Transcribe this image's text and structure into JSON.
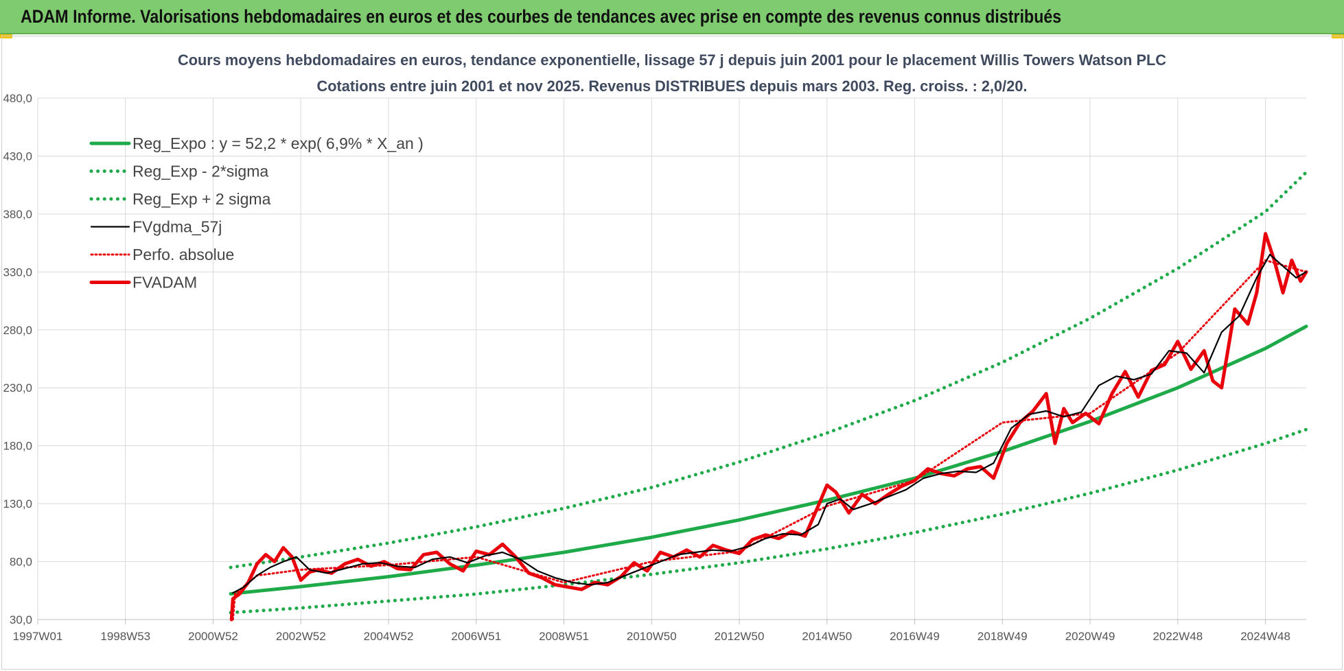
{
  "banner": {
    "title": "ADAM Informe. Valorisations hebdomadaires en euros et des courbes de tendances avec prise en compte des revenus connus distribués"
  },
  "colors": {
    "banner_bg": "#7fcb6f",
    "reg_green": "#1faa4a",
    "fv_red": "#e8000b",
    "black": "#000000"
  },
  "chart_data": {
    "type": "line",
    "title_lines": [
      "Cours moyens hebdomadaires en euros, tendance exponentielle, lissage 57 j depuis juin 2001 pour le placement Willis Towers Watson PLC",
      "Cotations entre juin 2001 et nov 2025.  Revenus DISTRIBUES depuis mars 2003. Reg. croiss. : 2,0/20."
    ],
    "xlabel": "",
    "ylabel": "",
    "x_range": [
      1997.0,
      2025.93
    ],
    "ylim": [
      30,
      480
    ],
    "y_ticks": [
      30,
      80,
      130,
      180,
      230,
      280,
      330,
      380,
      430,
      480
    ],
    "y_tick_labels": [
      "30,0",
      "80,0",
      "130,0",
      "180,0",
      "230,0",
      "280,0",
      "330,0",
      "380,0",
      "430,0",
      "480,0"
    ],
    "x_ticks": [
      {
        "label": "1997W01",
        "x": 1997.0
      },
      {
        "label": "1998W53",
        "x": 1999.0
      },
      {
        "label": "2000W52",
        "x": 2001.0
      },
      {
        "label": "2002W52",
        "x": 2003.0
      },
      {
        "label": "2004W52",
        "x": 2005.0
      },
      {
        "label": "2006W51",
        "x": 2007.0
      },
      {
        "label": "2008W51",
        "x": 2009.0
      },
      {
        "label": "2010W50",
        "x": 2011.0
      },
      {
        "label": "2012W50",
        "x": 2013.0
      },
      {
        "label": "2014W50",
        "x": 2015.0
      },
      {
        "label": "2016W49",
        "x": 2017.0
      },
      {
        "label": "2018W49",
        "x": 2019.0
      },
      {
        "label": "2020W49",
        "x": 2021.0
      },
      {
        "label": "2022W48",
        "x": 2023.0
      },
      {
        "label": "2024W48",
        "x": 2025.0
      }
    ],
    "legend_position": "top-left",
    "grid": true,
    "series": [
      {
        "name": "Reg_Expo : y = 52,2 * exp( 6,9% *  X_an )",
        "style": "solid-thick",
        "color": "#1faa4a",
        "x": [
          2001.4,
          2003,
          2005,
          2007,
          2009,
          2011,
          2013,
          2015,
          2017,
          2019,
          2021,
          2023,
          2025,
          2025.93
        ],
        "y": [
          52.2,
          58.4,
          67,
          77,
          88,
          101,
          116,
          133,
          152,
          175,
          201,
          230,
          264,
          283
        ]
      },
      {
        "name": "Reg_Exp - 2*sigma",
        "style": "dotted",
        "color": "#1faa4a",
        "x": [
          2001.4,
          2003,
          2005,
          2007,
          2009,
          2011,
          2013,
          2015,
          2017,
          2019,
          2021,
          2023,
          2025,
          2025.93
        ],
        "y": [
          36,
          40,
          46,
          52,
          60,
          69,
          79,
          91,
          105,
          121,
          139,
          159,
          182,
          194
        ]
      },
      {
        "name": "Reg_Exp + 2 sigma",
        "style": "dotted",
        "color": "#1faa4a",
        "x": [
          2001.4,
          2003,
          2005,
          2007,
          2009,
          2011,
          2013,
          2015,
          2017,
          2019,
          2021,
          2023,
          2025,
          2025.93
        ],
        "y": [
          75,
          84,
          96,
          110,
          126,
          144,
          166,
          191,
          219,
          252,
          290,
          333,
          382,
          416
        ]
      },
      {
        "name": "FVgdma_57j",
        "style": "solid",
        "color": "#000000",
        "x": [
          2001.45,
          2001.7,
          2002.0,
          2002.3,
          2002.6,
          2002.9,
          2003.2,
          2003.6,
          2004.0,
          2004.4,
          2004.8,
          2005.2,
          2005.6,
          2006.0,
          2006.4,
          2006.8,
          2007.2,
          2007.6,
          2008.0,
          2008.4,
          2008.8,
          2009.2,
          2009.6,
          2010.0,
          2010.4,
          2010.8,
          2011.2,
          2011.6,
          2012.0,
          2012.4,
          2012.8,
          2013.2,
          2013.6,
          2014.0,
          2014.4,
          2014.8,
          2015.0,
          2015.3,
          2015.6,
          2016.0,
          2016.4,
          2016.8,
          2017.2,
          2017.6,
          2018.0,
          2018.4,
          2018.8,
          2019.2,
          2019.6,
          2020.0,
          2020.4,
          2020.8,
          2021.2,
          2021.6,
          2022.0,
          2022.4,
          2022.8,
          2023.2,
          2023.6,
          2024.0,
          2024.4,
          2024.8,
          2025.1,
          2025.4,
          2025.7,
          2025.93
        ],
        "y": [
          53,
          58,
          68,
          75,
          80,
          84,
          73,
          70,
          74,
          78,
          79,
          76,
          75,
          82,
          84,
          79,
          85,
          88,
          82,
          72,
          66,
          62,
          60,
          62,
          68,
          74,
          80,
          86,
          88,
          90,
          89,
          93,
          100,
          104,
          103,
          112,
          130,
          134,
          125,
          130,
          136,
          142,
          152,
          156,
          158,
          157,
          165,
          195,
          207,
          210,
          205,
          209,
          232,
          240,
          237,
          242,
          262,
          260,
          243,
          278,
          292,
          325,
          345,
          335,
          325,
          330
        ]
      },
      {
        "name": "Perfo. absolue",
        "style": "dotted",
        "color": "#e8000b",
        "x": [
          2001.45,
          2001.5,
          2002.0,
          2003.0,
          2005.0,
          2007.0,
          2009.0,
          2011.0,
          2013.0,
          2015.0,
          2017.0,
          2019.0,
          2021.0,
          2023.0,
          2025.0,
          2025.93
        ],
        "y": [
          30,
          52,
          68,
          73,
          77,
          84,
          62,
          80,
          89,
          128,
          150,
          200,
          208,
          260,
          340,
          330
        ]
      },
      {
        "name": "FVADAM",
        "style": "solid-thick",
        "color": "#e8000b",
        "x": [
          2001.42,
          2001.45,
          2001.6,
          2001.8,
          2002.0,
          2002.2,
          2002.4,
          2002.6,
          2002.8,
          2003.0,
          2003.2,
          2003.4,
          2003.7,
          2004.0,
          2004.3,
          2004.6,
          2004.9,
          2005.2,
          2005.5,
          2005.8,
          2006.1,
          2006.4,
          2006.7,
          2007.0,
          2007.3,
          2007.6,
          2007.9,
          2008.2,
          2008.5,
          2008.8,
          2009.1,
          2009.4,
          2009.7,
          2010.0,
          2010.3,
          2010.6,
          2010.9,
          2011.2,
          2011.5,
          2011.8,
          2012.1,
          2012.4,
          2012.7,
          2013.0,
          2013.3,
          2013.6,
          2013.9,
          2014.2,
          2014.5,
          2014.8,
          2015.0,
          2015.2,
          2015.5,
          2015.8,
          2016.1,
          2016.4,
          2016.7,
          2017.0,
          2017.3,
          2017.6,
          2017.9,
          2018.2,
          2018.5,
          2018.8,
          2019.1,
          2019.4,
          2019.7,
          2020.0,
          2020.2,
          2020.4,
          2020.6,
          2020.9,
          2021.2,
          2021.5,
          2021.8,
          2022.1,
          2022.4,
          2022.7,
          2023.0,
          2023.3,
          2023.6,
          2023.8,
          2024.0,
          2024.3,
          2024.6,
          2024.8,
          2025.0,
          2025.2,
          2025.4,
          2025.6,
          2025.8,
          2025.93
        ],
        "y": [
          30,
          48,
          52,
          62,
          78,
          86,
          80,
          92,
          84,
          64,
          71,
          73,
          70,
          78,
          82,
          76,
          80,
          74,
          73,
          86,
          88,
          78,
          72,
          89,
          86,
          95,
          84,
          70,
          66,
          60,
          58,
          56,
          62,
          60,
          67,
          79,
          72,
          88,
          84,
          90,
          84,
          94,
          90,
          87,
          99,
          103,
          100,
          106,
          102,
          128,
          146,
          140,
          122,
          138,
          130,
          138,
          145,
          150,
          160,
          156,
          154,
          160,
          162,
          152,
          182,
          200,
          210,
          225,
          182,
          212,
          200,
          208,
          199,
          225,
          244,
          222,
          245,
          250,
          270,
          246,
          262,
          236,
          230,
          298,
          285,
          312,
          363,
          340,
          312,
          340,
          322,
          330
        ]
      }
    ]
  }
}
